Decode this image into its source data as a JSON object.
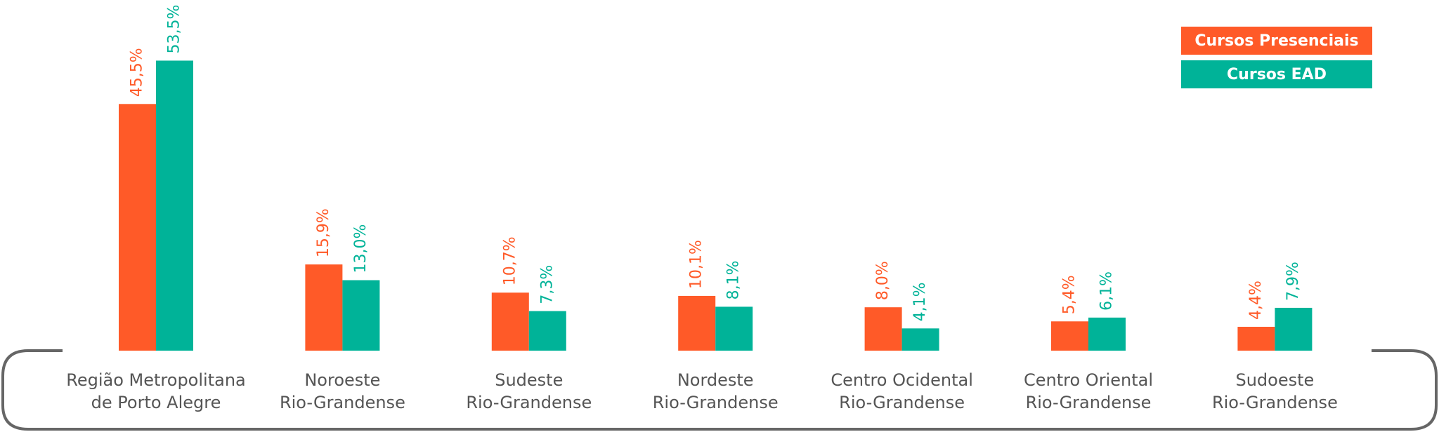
{
  "chart_data": {
    "type": "bar",
    "categories": [
      [
        "Região Metropolitana",
        "de Porto Alegre"
      ],
      [
        "Noroeste",
        "Rio-Grandense"
      ],
      [
        "Sudeste",
        "Rio-Grandense"
      ],
      [
        "Nordeste",
        "Rio-Grandense"
      ],
      [
        "Centro Ocidental",
        "Rio-Grandense"
      ],
      [
        "Centro Oriental",
        "Rio-Grandense"
      ],
      [
        "Sudoeste",
        "Rio-Grandense"
      ]
    ],
    "series": [
      {
        "name": "Cursos Presenciais",
        "color": "#ff5a28",
        "values": [
          45.5,
          15.9,
          10.7,
          10.1,
          8.0,
          5.4,
          4.4
        ],
        "value_labels": [
          "45,5%",
          "15,9%",
          "10,7%",
          "10,1%",
          "8,0%",
          "5,4%",
          "4,4%"
        ]
      },
      {
        "name": "Cursos EAD",
        "color": "#00b398",
        "values": [
          53.5,
          13.0,
          7.3,
          8.1,
          4.1,
          6.1,
          7.9
        ],
        "value_labels": [
          "53,5%",
          "13,0%",
          "7,3%",
          "8,1%",
          "4,1%",
          "6,1%",
          "7,9%"
        ]
      }
    ]
  }
}
